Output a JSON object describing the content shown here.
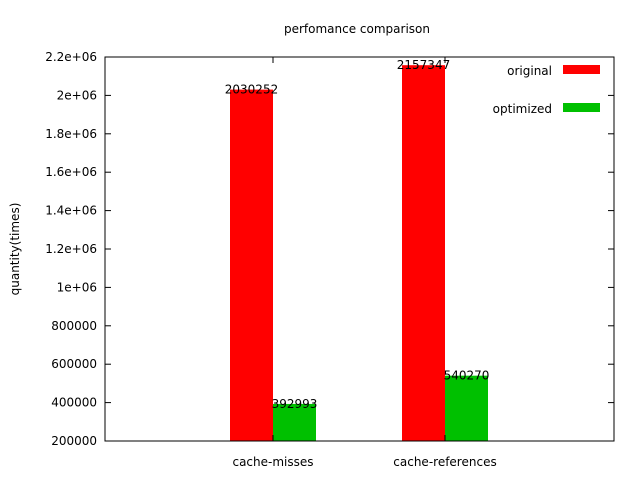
{
  "chart_data": {
    "type": "bar",
    "title": "perfomance comparison",
    "xlabel": "",
    "ylabel": "quantity(times)",
    "categories": [
      "cache-misses",
      "cache-references"
    ],
    "series": [
      {
        "name": "original",
        "values": [
          2030252,
          2157347
        ],
        "value_labels": [
          "2030252",
          "2157347"
        ],
        "color": "#ff0000"
      },
      {
        "name": "optimized",
        "values": [
          392993,
          540270
        ],
        "value_labels": [
          "392993",
          "540270"
        ],
        "color": "#00c000"
      }
    ],
    "ylim": [
      200000,
      2200000
    ],
    "yticks": [
      200000,
      400000,
      600000,
      800000,
      1000000,
      1200000,
      1400000,
      1600000,
      1800000,
      2000000,
      2200000
    ],
    "ytick_labels": [
      "200000",
      "400000",
      "600000",
      "800000",
      "1e+06",
      "1.2e+06",
      "1.4e+06",
      "1.6e+06",
      "1.8e+06",
      "2e+06",
      "2.2e+06"
    ],
    "grid": false,
    "legend_position": "top-right"
  }
}
